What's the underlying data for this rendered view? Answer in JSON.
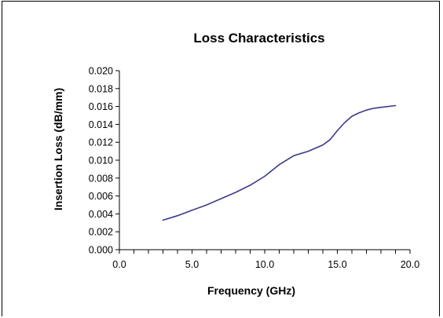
{
  "chart_data": {
    "type": "line",
    "title": "Loss Characteristics",
    "xlabel": "Frequency   (GHz)",
    "ylabel": "Insertion  Loss  (dB/mm)",
    "xlim": [
      0,
      20
    ],
    "ylim": [
      0,
      0.02
    ],
    "x_ticks": [
      "0.0",
      "5.0",
      "10.0",
      "15.0",
      "20.0"
    ],
    "y_ticks": [
      "0.000",
      "0.002",
      "0.004",
      "0.006",
      "0.008",
      "0.010",
      "0.012",
      "0.014",
      "0.016",
      "0.018",
      "0.020"
    ],
    "grid": false,
    "legend": "none",
    "line_color": "#3a3a8c",
    "series": [
      {
        "x": [
          3.0,
          4.0,
          5.0,
          6.0,
          7.0,
          8.0,
          9.0,
          10.0,
          11.0,
          12.0,
          13.0,
          14.0,
          14.5,
          15.0,
          15.5,
          16.0,
          16.5,
          17.0,
          17.5,
          18.0,
          19.0
        ],
        "values": [
          0.0033,
          0.0038,
          0.0044,
          0.005,
          0.0057,
          0.0064,
          0.0072,
          0.0082,
          0.0095,
          0.0105,
          0.011,
          0.0117,
          0.0123,
          0.0133,
          0.0142,
          0.0149,
          0.0153,
          0.0156,
          0.0158,
          0.0159,
          0.0161
        ]
      }
    ]
  }
}
